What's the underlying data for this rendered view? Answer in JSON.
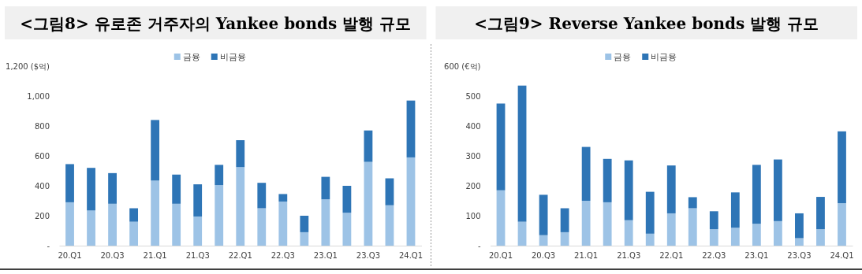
{
  "chart_data": [
    {
      "type": "bar",
      "title": "<그림8> 유로존 거주자의 Yankee bonds 발행 규모",
      "stacked": true,
      "legend": "top",
      "grid": false,
      "categories": [
        "20.Q1",
        null,
        "20.Q3",
        null,
        "21.Q1",
        null,
        "21.Q3",
        null,
        "22.Q1",
        null,
        "22.Q3",
        null,
        "23.Q1",
        null,
        "23.Q3",
        null,
        "24.Q1"
      ],
      "ylim": [
        0,
        1200
      ],
      "yticks": [
        {
          "value": 0,
          "label": "-"
        },
        200,
        400,
        600,
        800,
        {
          "value": 1000,
          "label": "1,000"
        },
        {
          "value": 1200,
          "label": "1,200 ($억)"
        }
      ],
      "series": [
        {
          "name": "금융",
          "color": "#9dc3e6",
          "values": [
            290,
            235,
            280,
            160,
            435,
            280,
            195,
            405,
            525,
            250,
            295,
            90,
            310,
            220,
            560,
            270,
            590
          ]
        },
        {
          "name": "비금융",
          "color": "#2e75b6",
          "values": [
            255,
            285,
            205,
            90,
            405,
            195,
            215,
            135,
            180,
            170,
            50,
            110,
            150,
            180,
            210,
            180,
            380
          ]
        }
      ]
    },
    {
      "type": "bar",
      "title": "<그림9> Reverse Yankee bonds 발행 규모",
      "stacked": true,
      "legend": "top",
      "grid": false,
      "categories": [
        "20.Q1",
        null,
        "20.Q3",
        null,
        "21.Q1",
        null,
        "21.Q3",
        null,
        "22.Q1",
        null,
        "22.Q3",
        null,
        "23.Q1",
        null,
        "23.Q3",
        null,
        "24.Q1"
      ],
      "ylim": [
        0,
        600
      ],
      "yticks": [
        {
          "value": 0,
          "label": "-"
        },
        100,
        200,
        300,
        400,
        500,
        {
          "value": 600,
          "label": "600 (€억)"
        }
      ],
      "series": [
        {
          "name": "금융",
          "color": "#9dc3e6",
          "values": [
            185,
            80,
            35,
            45,
            150,
            145,
            85,
            40,
            108,
            125,
            55,
            60,
            73,
            82,
            25,
            55,
            142
          ]
        },
        {
          "name": "비금융",
          "color": "#2e75b6",
          "values": [
            290,
            455,
            135,
            80,
            180,
            145,
            200,
            140,
            160,
            37,
            60,
            118,
            197,
            206,
            83,
            108,
            240
          ]
        }
      ]
    }
  ]
}
